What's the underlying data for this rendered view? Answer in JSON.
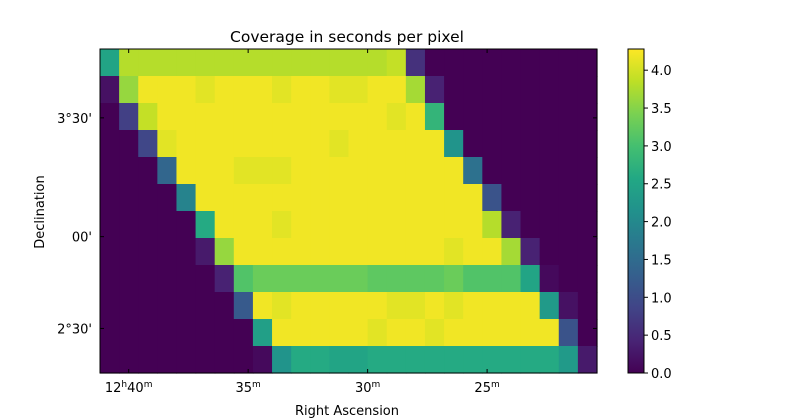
{
  "chart_data": {
    "type": "heatmap",
    "title": "Coverage in seconds per pixel",
    "xlabel": "Right Ascension",
    "ylabel": "Declination",
    "x_ticks": [
      {
        "major": "12",
        "major_unit": "h",
        "minor": "40",
        "minor_unit": "m",
        "col": 1.5
      },
      {
        "major": "",
        "major_unit": "",
        "minor": "35",
        "minor_unit": "m",
        "col": 7.75
      },
      {
        "major": "",
        "major_unit": "",
        "minor": "30",
        "minor_unit": "m",
        "col": 14.0
      },
      {
        "major": "",
        "major_unit": "",
        "minor": "25",
        "minor_unit": "m",
        "col": 20.25
      }
    ],
    "y_ticks": [
      {
        "label": "3°30'",
        "row": 2.55
      },
      {
        "label": "00'",
        "row": 6.95
      },
      {
        "label": "2°30'",
        "row": 10.35
      },
      {
        "label": "00'",
        "row": 14.05
      }
    ],
    "colorbar": {
      "vmin": 0.0,
      "vmax": 4.28,
      "ticks": [
        "0.0",
        "0.5",
        "1.0",
        "1.5",
        "2.0",
        "2.5",
        "3.0",
        "3.5",
        "4.0"
      ],
      "colormap": "viridis"
    },
    "grid": false,
    "legend": "none",
    "rows": [
      [
        2.5,
        3.8,
        3.8,
        3.8,
        3.8,
        3.8,
        3.8,
        3.8,
        3.8,
        3.8,
        3.8,
        3.8,
        3.8,
        3.8,
        3.8,
        3.9,
        0.6,
        0,
        0,
        0,
        0,
        0,
        0,
        0,
        0,
        0
      ],
      [
        0.2,
        3.6,
        4.2,
        4.2,
        4.2,
        4.1,
        4.2,
        4.2,
        4.2,
        4.1,
        4.2,
        4.2,
        4.1,
        4.1,
        4.2,
        4.2,
        3.7,
        0.4,
        0,
        0,
        0,
        0,
        0,
        0,
        0,
        0
      ],
      [
        0,
        0.8,
        3.9,
        4.2,
        4.2,
        4.2,
        4.2,
        4.2,
        4.2,
        4.2,
        4.2,
        4.2,
        4.2,
        4.2,
        4.2,
        4.1,
        4.2,
        2.8,
        0,
        0,
        0,
        0,
        0,
        0,
        0,
        0
      ],
      [
        0,
        0,
        0.9,
        4.1,
        4.2,
        4.2,
        4.2,
        4.2,
        4.2,
        4.2,
        4.2,
        4.2,
        4.1,
        4.2,
        4.2,
        4.2,
        4.2,
        4.2,
        2.2,
        0,
        0,
        0,
        0,
        0,
        0,
        0
      ],
      [
        0,
        0,
        0,
        1.4,
        4.2,
        4.2,
        4.2,
        4.1,
        4.1,
        4.1,
        4.2,
        4.2,
        4.2,
        4.2,
        4.2,
        4.2,
        4.2,
        4.2,
        4.2,
        1.6,
        0,
        0,
        0,
        0,
        0,
        0
      ],
      [
        0,
        0,
        0,
        0,
        1.9,
        4.2,
        4.2,
        4.2,
        4.2,
        4.2,
        4.2,
        4.2,
        4.2,
        4.2,
        4.2,
        4.2,
        4.2,
        4.2,
        4.2,
        4.2,
        1.1,
        0,
        0,
        0,
        0,
        0
      ],
      [
        0,
        0,
        0,
        0,
        0,
        2.6,
        4.2,
        4.2,
        4.2,
        4.1,
        4.2,
        4.2,
        4.2,
        4.2,
        4.2,
        4.2,
        4.2,
        4.2,
        4.2,
        4.2,
        3.8,
        0.4,
        0,
        0,
        0,
        0
      ],
      [
        0,
        0,
        0,
        0,
        0,
        0.3,
        3.6,
        4.2,
        4.2,
        4.2,
        4.2,
        4.2,
        4.2,
        4.2,
        4.2,
        4.2,
        4.2,
        4.2,
        4.1,
        4.2,
        4.2,
        3.7,
        0.4,
        0,
        0,
        0
      ],
      [
        0,
        0,
        0,
        0,
        0,
        0,
        0.4,
        3.1,
        3.3,
        3.3,
        3.3,
        3.3,
        3.3,
        3.3,
        3.2,
        3.2,
        3.2,
        3.2,
        3.3,
        3.1,
        3.1,
        3.1,
        2.5,
        0.1,
        0,
        0
      ],
      [
        0,
        0,
        0,
        0,
        0,
        0,
        0,
        1.2,
        4.2,
        4.1,
        4.2,
        4.2,
        4.2,
        4.2,
        4.2,
        4.1,
        4.1,
        4.2,
        4.1,
        4.2,
        4.2,
        4.2,
        4.2,
        2.3,
        0.2,
        0
      ],
      [
        0,
        0,
        0,
        0,
        0,
        0,
        0,
        0,
        2.4,
        4.2,
        4.2,
        4.2,
        4.2,
        4.2,
        4.1,
        4.2,
        4.2,
        4.1,
        4.2,
        4.2,
        4.2,
        4.2,
        4.2,
        4.2,
        1.1,
        0
      ],
      [
        0,
        0,
        0,
        0,
        0,
        0,
        0,
        0,
        0.1,
        2.2,
        2.6,
        2.6,
        2.5,
        2.5,
        2.6,
        2.6,
        2.6,
        2.6,
        2.6,
        2.6,
        2.6,
        2.6,
        2.6,
        2.6,
        2.3,
        0.3
      ]
    ]
  }
}
